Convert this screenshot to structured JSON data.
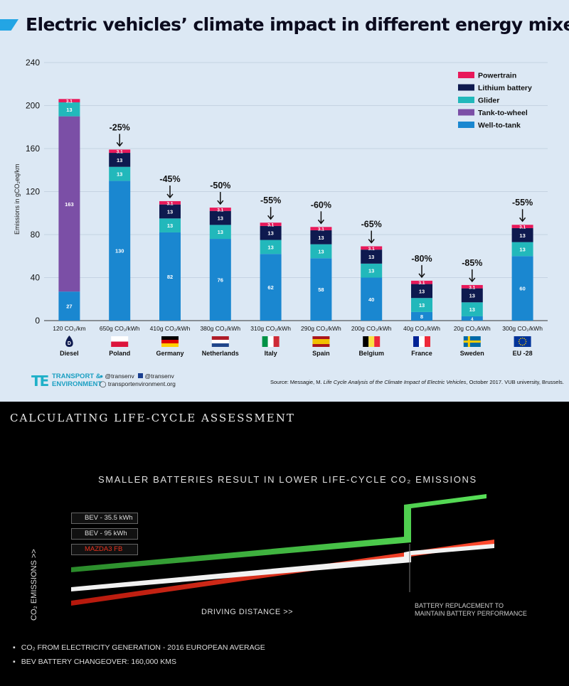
{
  "top": {
    "title": "Electric vehicles’ climate impact in different energy mixes",
    "social": [
      "@transenv",
      "@transenv"
    ],
    "website": "transportenvironment.org",
    "logo_lines": [
      "TRANSPORT &",
      "ENVIRONMENT"
    ],
    "source_prefix": "Source: Messagie, M.",
    "source_title": "Life Cycle Analysis of the Climate Impact of Electric Vehicles",
    "source_suffix": ", October 2017. VUB university, Brussels.",
    "diesel_letter": "D"
  },
  "chart_data": [
    {
      "type": "bar",
      "stacked": true,
      "ylabel": "Emissions in gCO₂eq/km",
      "ylim": [
        0,
        240
      ],
      "yticks": [
        0,
        40,
        80,
        120,
        160,
        200,
        240
      ],
      "grid": true,
      "legend_position": "top-right",
      "categories": [
        "Diesel",
        "Poland",
        "Germany",
        "Netherlands",
        "Italy",
        "Spain",
        "Belgium",
        "France",
        "Sweden",
        "EU -28"
      ],
      "intensity_labels": [
        "120 CO₂/km",
        "650g CO₂/kWh",
        "410g CO₂/kWh",
        "380g CO₂/kWh",
        "310g CO₂/kWh",
        "290g CO₂/kWh",
        "200g CO₂/kWh",
        "40g CO₂/kWh",
        "20g CO₂/kWh",
        "300g CO₂/kWh"
      ],
      "reductions": [
        "",
        "-25%",
        "-45%",
        "-50%",
        "-55%",
        "-60%",
        "-65%",
        "-80%",
        "-85%",
        "-55%"
      ],
      "series": [
        {
          "name": "Well-to-tank",
          "color": "#1a87d0",
          "values": [
            27,
            130,
            82,
            76,
            62,
            58,
            40,
            8,
            4,
            60
          ]
        },
        {
          "name": "Tank-to-wheel",
          "color": "#7b4fa6",
          "values": [
            163,
            0,
            0,
            0,
            0,
            0,
            0,
            0,
            0,
            0
          ]
        },
        {
          "name": "Glider",
          "color": "#22b8bb",
          "values": [
            13,
            13,
            13,
            13,
            13,
            13,
            13,
            13,
            13,
            13
          ]
        },
        {
          "name": "Lithium battery",
          "color": "#0e1a4f",
          "values": [
            0,
            13,
            13,
            13,
            13,
            13,
            13,
            13,
            13,
            13
          ]
        },
        {
          "name": "Powertrain",
          "color": "#e8195a",
          "values": [
            3.1,
            3.1,
            3.1,
            3.1,
            3.1,
            3.1,
            3.1,
            3.1,
            3.1,
            3.1
          ]
        }
      ],
      "legend_order": [
        "Powertrain",
        "Lithium battery",
        "Glider",
        "Tank-to-wheel",
        "Well-to-tank"
      ]
    },
    {
      "type": "line",
      "title": "SMALLER BATTERIES RESULT IN LOWER LIFE-CYCLE CO₂ EMISSIONS",
      "xlabel": "DRIVING DISTANCE >>",
      "ylabel": "CO₂ EMISSIONS >>",
      "series": [
        {
          "name": "BEV - 35.5 kWh",
          "color": "#ffffff",
          "shape": "linear rise with small step at battery replacement"
        },
        {
          "name": "BEV - 95 kWh",
          "color": "#3fc23f",
          "shape": "higher start, large step at battery replacement"
        },
        {
          "name": "MAZDA3 FB",
          "color": "#e8321e",
          "shape": "lowest start, steepest continuous rise"
        }
      ],
      "annotation": "BATTERY REPLACEMENT TO MAINTAIN BATTERY PERFORMANCE"
    }
  ],
  "bottom": {
    "header": "CALCULATING LIFE-CYCLE ASSESSMENT",
    "notes": [
      "CO₂ FROM ELECTRICITY GENERATION - 2016 EUROPEAN AVERAGE",
      "BEV BATTERY CHANGEOVER: 160,000 KMS"
    ]
  }
}
